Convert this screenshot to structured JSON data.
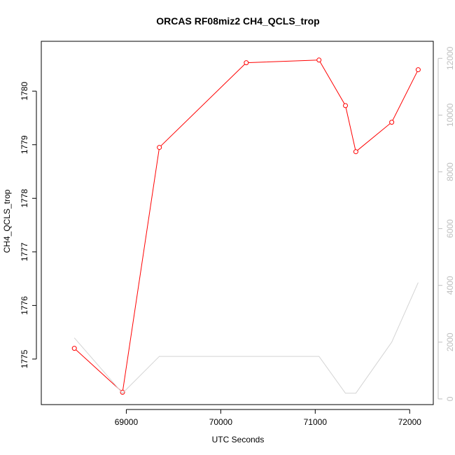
{
  "chart_data": {
    "type": "line",
    "title": "ORCAS RF08miz2 CH4_QCLS_trop",
    "xlabel": "UTC Seconds",
    "ylabel": "CH4_QCLS_trop",
    "xlim": [
      68100,
      72250
    ],
    "ylim": [
      1774.15,
      1780.93
    ],
    "y2lim": [
      -200,
      12600
    ],
    "x_ticks": [
      69000,
      70000,
      71000,
      72000
    ],
    "y_ticks": [
      1775,
      1776,
      1777,
      1778,
      1779,
      1780
    ],
    "y2_ticks": [
      0,
      2000,
      4000,
      6000,
      8000,
      10000,
      12000
    ],
    "grid": false,
    "legend": "none",
    "series": [
      {
        "axis": "left",
        "color": "#ff0000",
        "marker": "open-circle",
        "x": [
          68450,
          68960,
          69350,
          70270,
          71040,
          71320,
          71430,
          71810,
          72090
        ],
        "y": [
          1775.2,
          1774.38,
          1778.95,
          1780.53,
          1780.58,
          1779.73,
          1778.87,
          1779.42,
          1780.4
        ]
      },
      {
        "axis": "right",
        "color": "#d3d3d3",
        "marker": "none",
        "x": [
          68450,
          68960,
          69350,
          70270,
          71040,
          71320,
          71430,
          71810,
          72090
        ],
        "y": [
          2150,
          200,
          1500,
          1500,
          1500,
          200,
          200,
          2000,
          4100
        ]
      }
    ]
  }
}
